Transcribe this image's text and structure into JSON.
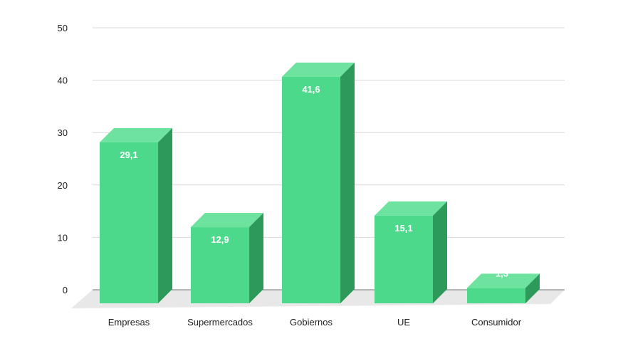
{
  "chart_data": {
    "type": "bar",
    "style": "3d-column",
    "title": "",
    "xlabel": "",
    "ylabel": "",
    "categories": [
      "Empresas",
      "Supermercados",
      "Gobiernos",
      "UE",
      "Consumidor"
    ],
    "values": [
      29.1,
      12.9,
      41.6,
      15.1,
      1.3
    ],
    "value_labels": [
      "29,1",
      "12,9",
      "41,6",
      "15,1",
      "1,3"
    ],
    "ylim": [
      0,
      50
    ],
    "yticks": [
      0,
      10,
      20,
      30,
      40,
      50
    ],
    "grid": true,
    "legend": null,
    "colors": {
      "bar_front": "#4cd98b",
      "bar_top": "#6ee3a0",
      "bar_side": "#2e9a5a",
      "floor": "#e8e8e8",
      "grid": "#d9d9d9",
      "axis": "#9e9e9e"
    }
  }
}
